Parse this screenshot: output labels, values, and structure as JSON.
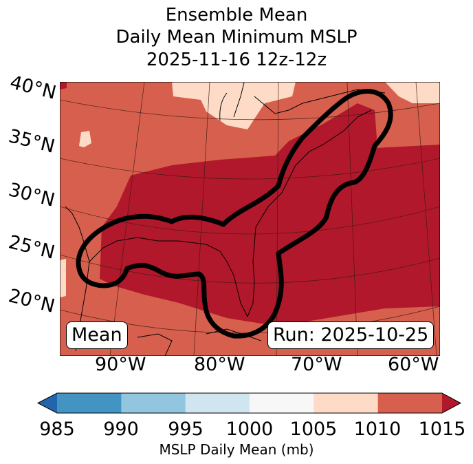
{
  "title_lines": [
    "Ensemble Mean",
    "Daily Mean Minimum MSLP",
    "2025-11-16 12z-12z"
  ],
  "map": {
    "lat_labels": [
      "40°N",
      "35°N",
      "30°N",
      "25°N",
      "20°N"
    ],
    "lon_labels": [
      "90°W",
      "80°W",
      "70°W",
      "60°W"
    ],
    "left_box": "Mean",
    "right_box": "Run: 2025-10-25"
  },
  "colorbar": {
    "ticks": [
      "985",
      "990",
      "995",
      "1000",
      "1005",
      "1010",
      "1015"
    ],
    "label": "MSLP Daily Mean (mb)",
    "colors": [
      "#4393c3",
      "#92c5de",
      "#d1e5f0",
      "#f7f7f7",
      "#fddbc7",
      "#d6604d"
    ],
    "under_color": "#2166ac",
    "over_color": "#b2182b"
  }
}
